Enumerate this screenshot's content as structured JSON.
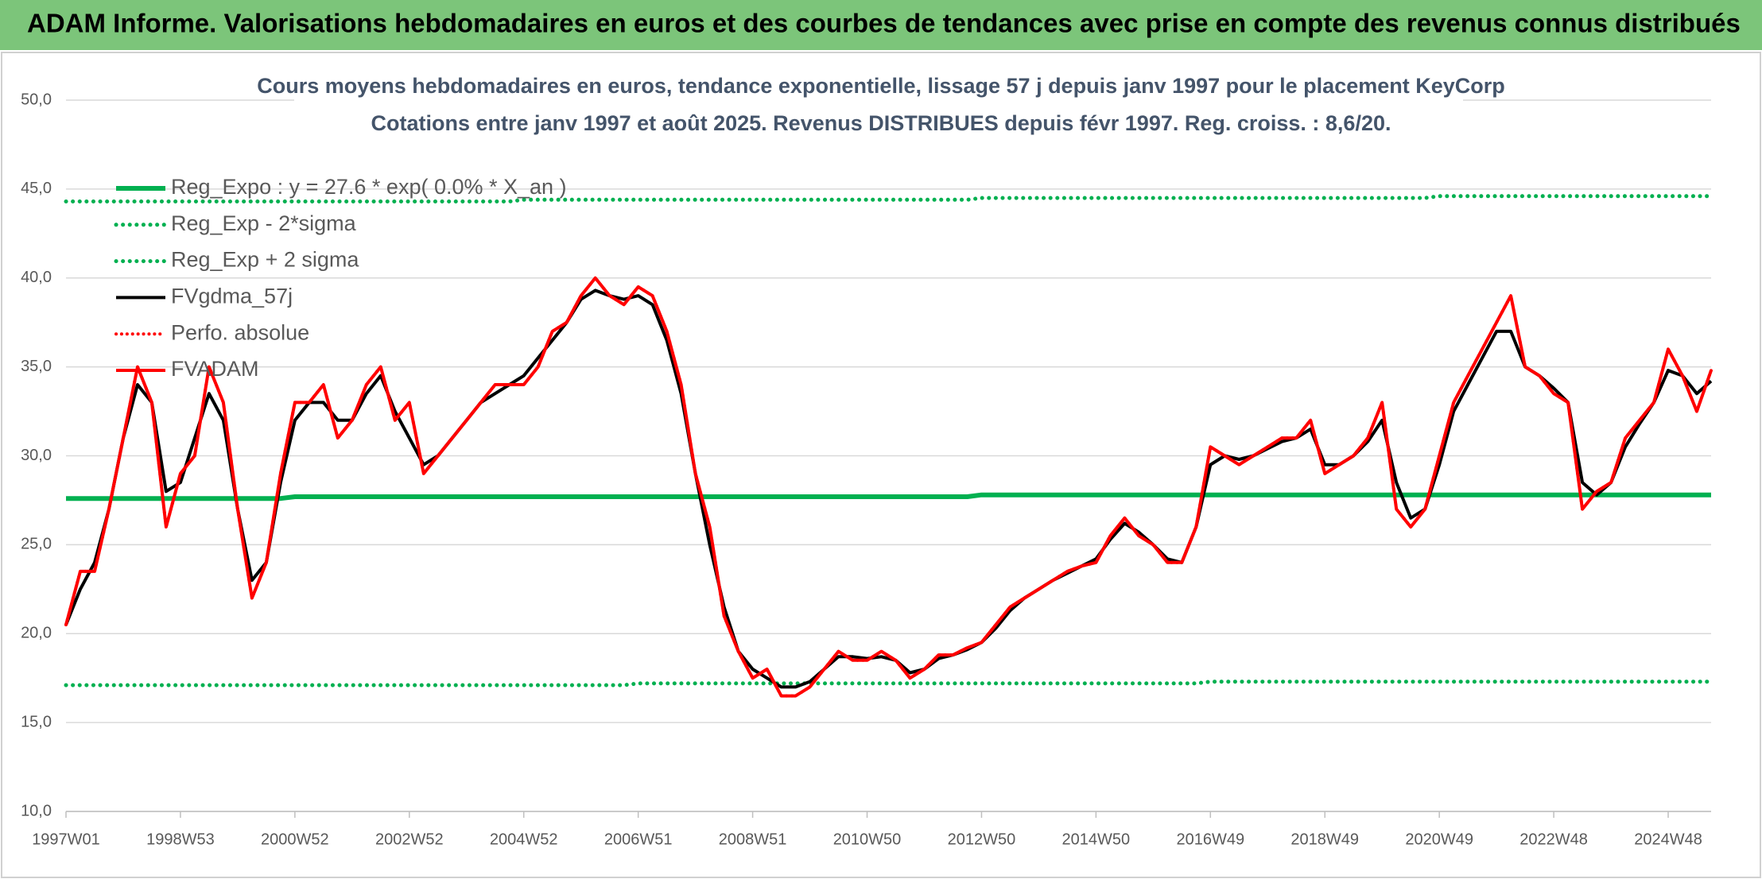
{
  "header": {
    "title": "ADAM Informe. Valorisations hebdomadaires en euros et des courbes de tendances avec prise en compte des revenus connus distribués"
  },
  "chart_data": {
    "type": "line",
    "title": "Cours moyens hebdomadaires en euros, tendance exponentielle, lissage 57 j depuis janv 1997 pour le placement KeyCorp",
    "subtitle": "Cotations entre janv 1997 et août 2025. Revenus DISTRIBUES depuis févr 1997. Reg. croiss. : 8,6/20.",
    "categories": [
      "1997W01",
      null,
      null,
      null,
      null,
      null,
      null,
      null,
      "1998W53",
      null,
      null,
      null,
      null,
      null,
      null,
      null,
      "2000W52",
      null,
      null,
      null,
      null,
      null,
      null,
      null,
      "2002W52",
      null,
      null,
      null,
      null,
      null,
      null,
      null,
      "2004W52",
      null,
      null,
      null,
      null,
      null,
      null,
      null,
      "2006W51",
      null,
      null,
      null,
      null,
      null,
      null,
      null,
      "2008W51",
      null,
      null,
      null,
      null,
      null,
      null,
      null,
      "2010W50",
      null,
      null,
      null,
      null,
      null,
      null,
      null,
      "2012W50",
      null,
      null,
      null,
      null,
      null,
      null,
      null,
      "2014W50",
      null,
      null,
      null,
      null,
      null,
      null,
      null,
      "2016W49",
      null,
      null,
      null,
      null,
      null,
      null,
      null,
      "2018W49",
      null,
      null,
      null,
      null,
      null,
      null,
      null,
      "2020W49",
      null,
      null,
      null,
      null,
      null,
      null,
      null,
      "2022W48",
      null,
      null,
      null,
      null,
      null,
      null,
      null,
      "2024W48",
      null,
      null,
      null
    ],
    "ylim": [
      10,
      50
    ],
    "yticks": [
      {
        "value": 10,
        "label": "10,0"
      },
      {
        "value": 15,
        "label": "15,0"
      },
      {
        "value": 20,
        "label": "20,0"
      },
      {
        "value": 25,
        "label": "25,0"
      },
      {
        "value": 30,
        "label": "30,0"
      },
      {
        "value": 35,
        "label": "35,0"
      },
      {
        "value": 40,
        "label": "40,0"
      },
      {
        "value": 45,
        "label": "45,0"
      },
      {
        "value": 50,
        "label": "50,0"
      }
    ],
    "grid": true,
    "legend": "upper-left",
    "series": [
      {
        "name": "Reg_Expo : y = 27.6 * exp( 0.0% * X_an )",
        "color": "#00b050",
        "style": "solid",
        "width": 6,
        "values": [
          27.6,
          27.6,
          27.6,
          27.6,
          27.6,
          27.6,
          27.6,
          27.6,
          27.6,
          27.6,
          27.6,
          27.6,
          27.6,
          27.6,
          27.6,
          27.6,
          27.7,
          27.7,
          27.7,
          27.7,
          27.7,
          27.7,
          27.7,
          27.7,
          27.7,
          27.7,
          27.7,
          27.7,
          27.7,
          27.7,
          27.7,
          27.7,
          27.7,
          27.7,
          27.7,
          27.7,
          27.7,
          27.7,
          27.7,
          27.7,
          27.7,
          27.7,
          27.7,
          27.7,
          27.7,
          27.7,
          27.7,
          27.7,
          27.7,
          27.7,
          27.7,
          27.7,
          27.7,
          27.7,
          27.7,
          27.7,
          27.7,
          27.7,
          27.7,
          27.7,
          27.7,
          27.7,
          27.7,
          27.7,
          27.8,
          27.8,
          27.8,
          27.8,
          27.8,
          27.8,
          27.8,
          27.8,
          27.8,
          27.8,
          27.8,
          27.8,
          27.8,
          27.8,
          27.8,
          27.8,
          27.8,
          27.8,
          27.8,
          27.8,
          27.8,
          27.8,
          27.8,
          27.8,
          27.8,
          27.8,
          27.8,
          27.8,
          27.8,
          27.8,
          27.8,
          27.8,
          27.8,
          27.8,
          27.8,
          27.8,
          27.8,
          27.8,
          27.8,
          27.8,
          27.8,
          27.8,
          27.8,
          27.8,
          27.8,
          27.8,
          27.8,
          27.8,
          27.8,
          27.8,
          27.8,
          27.8
        ]
      },
      {
        "name": "Reg_Exp - 2*sigma",
        "color": "#00b050",
        "style": "dotted",
        "width": 5,
        "values": [
          17.1,
          17.1,
          17.1,
          17.1,
          17.1,
          17.1,
          17.1,
          17.1,
          17.1,
          17.1,
          17.1,
          17.1,
          17.1,
          17.1,
          17.1,
          17.1,
          17.1,
          17.1,
          17.1,
          17.1,
          17.1,
          17.1,
          17.1,
          17.1,
          17.1,
          17.1,
          17.1,
          17.1,
          17.1,
          17.1,
          17.1,
          17.1,
          17.1,
          17.1,
          17.1,
          17.1,
          17.1,
          17.1,
          17.1,
          17.1,
          17.2,
          17.2,
          17.2,
          17.2,
          17.2,
          17.2,
          17.2,
          17.2,
          17.2,
          17.2,
          17.2,
          17.2,
          17.2,
          17.2,
          17.2,
          17.2,
          17.2,
          17.2,
          17.2,
          17.2,
          17.2,
          17.2,
          17.2,
          17.2,
          17.2,
          17.2,
          17.2,
          17.2,
          17.2,
          17.2,
          17.2,
          17.2,
          17.2,
          17.2,
          17.2,
          17.2,
          17.2,
          17.2,
          17.2,
          17.2,
          17.3,
          17.3,
          17.3,
          17.3,
          17.3,
          17.3,
          17.3,
          17.3,
          17.3,
          17.3,
          17.3,
          17.3,
          17.3,
          17.3,
          17.3,
          17.3,
          17.3,
          17.3,
          17.3,
          17.3,
          17.3,
          17.3,
          17.3,
          17.3,
          17.3,
          17.3,
          17.3,
          17.3,
          17.3,
          17.3,
          17.3,
          17.3,
          17.3,
          17.3,
          17.3,
          17.3
        ]
      },
      {
        "name": "Reg_Exp + 2 sigma",
        "color": "#00b050",
        "style": "dotted",
        "width": 5,
        "values": [
          44.3,
          44.3,
          44.3,
          44.3,
          44.3,
          44.3,
          44.3,
          44.3,
          44.3,
          44.3,
          44.3,
          44.3,
          44.3,
          44.3,
          44.3,
          44.3,
          44.3,
          44.3,
          44.3,
          44.3,
          44.3,
          44.3,
          44.3,
          44.3,
          44.3,
          44.3,
          44.3,
          44.3,
          44.3,
          44.3,
          44.3,
          44.3,
          44.4,
          44.4,
          44.4,
          44.4,
          44.4,
          44.4,
          44.4,
          44.4,
          44.4,
          44.4,
          44.4,
          44.4,
          44.4,
          44.4,
          44.4,
          44.4,
          44.4,
          44.4,
          44.4,
          44.4,
          44.4,
          44.4,
          44.4,
          44.4,
          44.4,
          44.4,
          44.4,
          44.4,
          44.4,
          44.4,
          44.4,
          44.4,
          44.5,
          44.5,
          44.5,
          44.5,
          44.5,
          44.5,
          44.5,
          44.5,
          44.5,
          44.5,
          44.5,
          44.5,
          44.5,
          44.5,
          44.5,
          44.5,
          44.5,
          44.5,
          44.5,
          44.5,
          44.5,
          44.5,
          44.5,
          44.5,
          44.5,
          44.5,
          44.5,
          44.5,
          44.5,
          44.5,
          44.5,
          44.5,
          44.6,
          44.6,
          44.6,
          44.6,
          44.6,
          44.6,
          44.6,
          44.6,
          44.6,
          44.6,
          44.6,
          44.6,
          44.6,
          44.6,
          44.6,
          44.6,
          44.6,
          44.6,
          44.6,
          44.6
        ]
      },
      {
        "name": "FVgdma_57j",
        "color": "#000000",
        "style": "solid",
        "width": 4,
        "values": [
          20.5,
          22.5,
          24,
          27,
          31,
          34,
          33,
          28,
          28.5,
          31,
          33.5,
          32,
          27,
          23,
          24,
          28.5,
          32,
          33,
          33,
          32,
          32,
          33.5,
          34.5,
          32.5,
          31,
          29.5,
          30,
          31,
          32,
          33,
          33.5,
          34,
          34.5,
          35.5,
          36.5,
          37.5,
          38.8,
          39.3,
          39,
          38.8,
          39,
          38.5,
          36.5,
          33.5,
          29,
          25,
          21.5,
          19,
          18,
          17.5,
          17,
          17,
          17.3,
          18,
          18.7,
          18.7,
          18.6,
          18.7,
          18.5,
          17.8,
          18,
          18.6,
          18.8,
          19.1,
          19.5,
          20.3,
          21.3,
          22,
          22.5,
          23,
          23.4,
          23.8,
          24.2,
          25.3,
          26.2,
          25.7,
          25,
          24.2,
          24,
          26,
          29.5,
          30,
          29.8,
          30,
          30.4,
          30.8,
          31,
          31.5,
          29.5,
          29.5,
          30,
          30.8,
          32,
          28.5,
          26.5,
          27,
          29.5,
          32.5,
          34,
          35.5,
          37,
          37,
          35,
          34.5,
          33.8,
          33,
          28.5,
          27.8,
          28.5,
          30.5,
          31.8,
          33,
          34.8,
          34.5,
          33.5,
          34.2
        ]
      },
      {
        "name": "Perfo. absolue",
        "color": "#ff0000",
        "style": "dotted",
        "width": 4,
        "values": [
          20.5,
          23.5,
          23.5,
          27,
          31,
          35,
          33,
          26,
          29,
          30,
          35,
          33,
          27,
          22,
          24,
          29,
          33,
          33,
          34,
          31,
          32,
          34,
          35,
          32,
          33,
          29,
          30,
          31,
          32,
          33,
          34,
          34,
          34,
          35,
          37,
          37.5,
          39,
          40,
          39,
          38.5,
          39.5,
          39,
          37,
          34,
          29,
          26,
          21,
          19,
          17.5,
          18,
          16.5,
          16.5,
          17,
          18,
          19,
          18.5,
          18.5,
          19,
          18.5,
          17.5,
          18,
          18.8,
          18.8,
          19.2,
          19.5,
          20.5,
          21.5,
          22,
          22.5,
          23,
          23.5,
          23.8,
          24,
          25.5,
          26.5,
          25.5,
          25,
          24,
          24,
          26,
          30.5,
          30,
          29.5,
          30,
          30.5,
          31,
          31,
          32,
          29,
          29.5,
          30,
          31,
          33,
          27,
          26,
          27,
          30,
          33,
          34.5,
          36,
          37.5,
          39,
          35,
          34.5,
          33.5,
          33,
          27,
          28,
          28.5,
          31,
          32,
          33,
          36,
          34.5,
          32.5,
          34.8
        ]
      },
      {
        "name": "FVADAM",
        "color": "#ff0000",
        "style": "solid",
        "width": 4,
        "values": [
          20.5,
          23.5,
          23.5,
          27,
          31,
          35,
          33,
          26,
          29,
          30,
          35,
          33,
          27,
          22,
          24,
          29,
          33,
          33,
          34,
          31,
          32,
          34,
          35,
          32,
          33,
          29,
          30,
          31,
          32,
          33,
          34,
          34,
          34,
          35,
          37,
          37.5,
          39,
          40,
          39,
          38.5,
          39.5,
          39,
          37,
          34,
          29,
          26,
          21,
          19,
          17.5,
          18,
          16.5,
          16.5,
          17,
          18,
          19,
          18.5,
          18.5,
          19,
          18.5,
          17.5,
          18,
          18.8,
          18.8,
          19.2,
          19.5,
          20.5,
          21.5,
          22,
          22.5,
          23,
          23.5,
          23.8,
          24,
          25.5,
          26.5,
          25.5,
          25,
          24,
          24,
          26,
          30.5,
          30,
          29.5,
          30,
          30.5,
          31,
          31,
          32,
          29,
          29.5,
          30,
          31,
          33,
          27,
          26,
          27,
          30,
          33,
          34.5,
          36,
          37.5,
          39,
          35,
          34.5,
          33.5,
          33,
          27,
          28,
          28.5,
          31,
          32,
          33,
          36,
          34.5,
          32.5,
          34.8
        ]
      }
    ]
  }
}
